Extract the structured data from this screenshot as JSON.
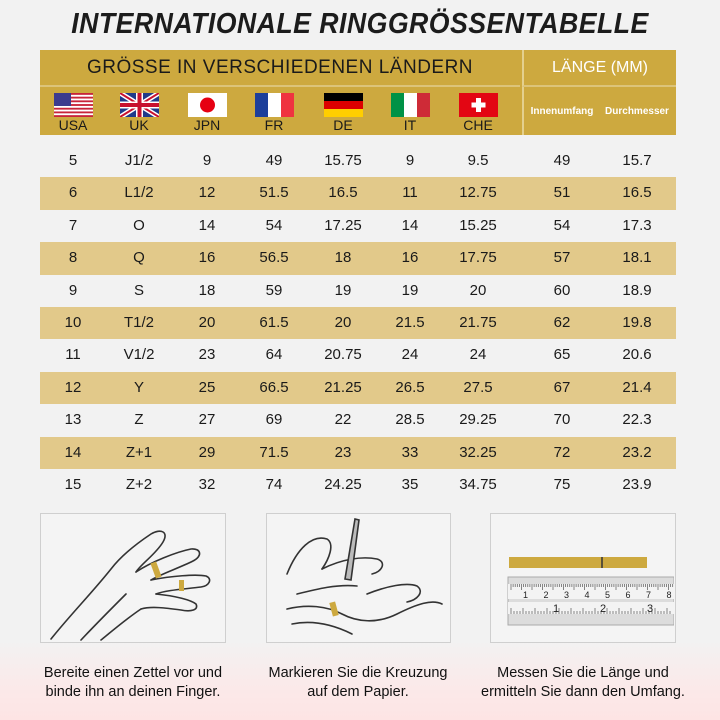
{
  "title": "INTERNATIONALE RINGGRÖSSENTABELLE",
  "header": {
    "sizes_title": "GRÖSSE IN VERSCHIEDENEN LÄNDERN",
    "length_title": "LÄNGE (MM)",
    "countries": [
      {
        "code": "USA",
        "flag": "us-flag-icon"
      },
      {
        "code": "UK",
        "flag": "uk-flag-icon"
      },
      {
        "code": "JPN",
        "flag": "japan-flag-icon"
      },
      {
        "code": "FR",
        "flag": "france-flag-icon"
      },
      {
        "code": "DE",
        "flag": "germany-flag-icon"
      },
      {
        "code": "IT",
        "flag": "italy-flag-icon"
      },
      {
        "code": "CHE",
        "flag": "switzerland-flag-icon"
      }
    ],
    "length_columns": [
      "Innenumfang",
      "Durchmesser"
    ]
  },
  "colors": {
    "header_gold": "#cda93f",
    "stripe": "#e2c98a",
    "background": "#f2f2f2",
    "length_title": "#ffffff"
  },
  "rows": [
    [
      "5",
      "J1/2",
      "9",
      "49",
      "15.75",
      "9",
      "9.5",
      "49",
      "15.7"
    ],
    [
      "6",
      "L1/2",
      "12",
      "51.5",
      "16.5",
      "11",
      "12.75",
      "51",
      "16.5"
    ],
    [
      "7",
      "O",
      "14",
      "54",
      "17.25",
      "14",
      "15.25",
      "54",
      "17.3"
    ],
    [
      "8",
      "Q",
      "16",
      "56.5",
      "18",
      "16",
      "17.75",
      "57",
      "18.1"
    ],
    [
      "9",
      "S",
      "18",
      "59",
      "19",
      "19",
      "20",
      "60",
      "18.9"
    ],
    [
      "10",
      "T1/2",
      "20",
      "61.5",
      "20",
      "21.5",
      "21.75",
      "62",
      "19.8"
    ],
    [
      "11",
      "V1/2",
      "23",
      "64",
      "20.75",
      "24",
      "24",
      "65",
      "20.6"
    ],
    [
      "12",
      "Y",
      "25",
      "66.5",
      "21.25",
      "26.5",
      "27.5",
      "67",
      "21.4"
    ],
    [
      "13",
      "Z",
      "27",
      "69",
      "22",
      "28.5",
      "29.25",
      "70",
      "22.3"
    ],
    [
      "14",
      "Z+1",
      "29",
      "71.5",
      "23",
      "33",
      "32.25",
      "72",
      "23.2"
    ],
    [
      "15",
      "Z+2",
      "32",
      "74",
      "24.25",
      "35",
      "34.75",
      "75",
      "23.9"
    ]
  ],
  "steps": [
    {
      "line1": "Bereite einen Zettel vor und",
      "line2": "binde ihn an deinen Finger.",
      "icon": "hand-with-paper-strip-icon"
    },
    {
      "line1": "Markieren Sie die Kreuzung",
      "line2": "auf dem Papier.",
      "icon": "hand-marking-pen-icon"
    },
    {
      "line1": "Messen Sie die Länge und",
      "line2": "ermitteln Sie dann den Umfang.",
      "icon": "ruler-with-strip-icon"
    }
  ],
  "ruler": {
    "top_labels": [
      "1",
      "2",
      "3",
      "4",
      "5",
      "6",
      "7",
      "8"
    ],
    "bottom_labels": [
      "1",
      "2",
      "3"
    ]
  }
}
